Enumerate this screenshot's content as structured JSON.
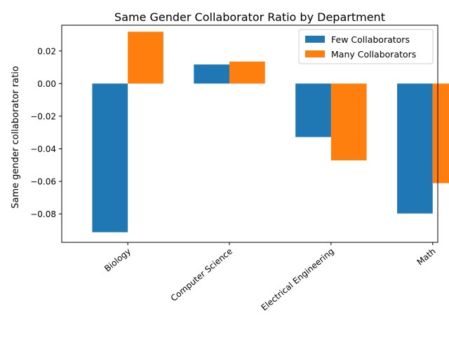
{
  "chart_data": {
    "type": "bar",
    "title": "Same Gender Collaborator Ratio by Department",
    "xlabel": "",
    "ylabel": "Same gender collaborator ratio",
    "categories": [
      "Biology",
      "Computer Science",
      "Electrical Engineering",
      "Math"
    ],
    "series": [
      {
        "name": "Few Collaborators",
        "values": [
          -0.0912,
          0.0117,
          -0.0328,
          -0.0797
        ],
        "color": "#1f77b4"
      },
      {
        "name": "Many Collaborators",
        "values": [
          0.0318,
          0.0135,
          -0.0471,
          -0.0611
        ],
        "color": "#ff7f0e"
      }
    ],
    "ylim": [
      -0.0974,
      0.0358
    ],
    "yticks": [
      -0.08,
      -0.06,
      -0.04,
      -0.02,
      0.0,
      0.02
    ],
    "ytick_labels": [
      "−0.08",
      "−0.06",
      "−0.04",
      "−0.02",
      "0.00",
      "0.02"
    ],
    "grid": false,
    "legend_position": "top-right"
  }
}
